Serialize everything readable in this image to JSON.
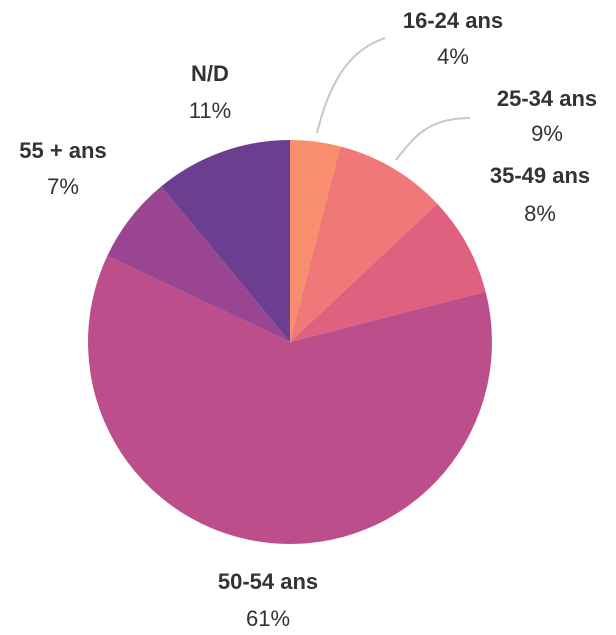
{
  "chart_data": {
    "type": "pie",
    "categories": [
      "16-24 ans",
      "25-34 ans",
      "35-49 ans",
      "50-54 ans",
      "55 + ans",
      "N/D"
    ],
    "values": [
      4,
      9,
      8,
      61,
      7,
      11
    ],
    "value_labels": [
      "4%",
      "9%",
      "8%",
      "61%",
      "7%",
      "11%"
    ],
    "colors": [
      "#f98e6f",
      "#f07878",
      "#e0617f",
      "#bc4f8b",
      "#9a4592",
      "#6c3e8f"
    ]
  }
}
